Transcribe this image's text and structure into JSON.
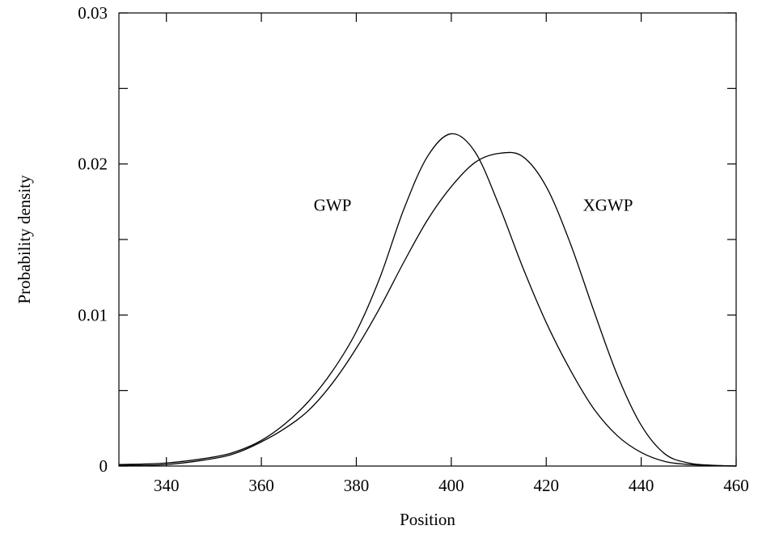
{
  "chart_data": {
    "type": "line",
    "title": "",
    "xlabel": "Position",
    "ylabel": "Probability density",
    "xlim": [
      330,
      460
    ],
    "ylim": [
      0,
      0.03
    ],
    "grid": false,
    "x_ticks": [
      340,
      360,
      380,
      400,
      420,
      440,
      460
    ],
    "x_tick_labels": [
      "340",
      "360",
      "380",
      "400",
      "420",
      "440",
      "460"
    ],
    "y_ticks": [
      0,
      0.01,
      0.02,
      0.03
    ],
    "y_tick_labels": [
      "0",
      "0.01",
      "0.02",
      "0.03"
    ],
    "y_minor_ticks": [
      0.005,
      0.015,
      0.025
    ],
    "series": [
      {
        "name": "GWP",
        "label_pos": [
          375,
          0.0169
        ],
        "x": [
          330,
          340,
          350,
          355,
          360,
          365,
          370,
          375,
          380,
          385,
          390,
          395,
          400,
          405,
          410,
          415,
          420,
          425,
          430,
          435,
          440,
          445,
          450,
          455,
          460
        ],
        "y": [
          0.0001,
          0.0002,
          0.0006,
          0.001,
          0.0017,
          0.0028,
          0.0043,
          0.0063,
          0.0089,
          0.0125,
          0.017,
          0.0205,
          0.022,
          0.0208,
          0.0173,
          0.0132,
          0.0095,
          0.0064,
          0.0038,
          0.002,
          0.0009,
          0.0003,
          0.0001,
          4e-05,
          0.0
        ]
      },
      {
        "name": "XGWP",
        "label_pos": [
          433,
          0.0169
        ],
        "x": [
          330,
          340,
          350,
          355,
          360,
          365,
          370,
          375,
          380,
          385,
          390,
          395,
          400,
          405,
          410,
          415,
          420,
          425,
          430,
          435,
          440,
          445,
          450,
          455,
          460
        ],
        "y": [
          5e-05,
          0.0001,
          0.0005,
          0.0009,
          0.0016,
          0.0025,
          0.0037,
          0.0055,
          0.0078,
          0.0105,
          0.0135,
          0.0163,
          0.0185,
          0.0201,
          0.0207,
          0.0205,
          0.0185,
          0.0148,
          0.0103,
          0.006,
          0.0027,
          0.0008,
          0.0002,
          5e-05,
          0.0
        ]
      }
    ]
  }
}
